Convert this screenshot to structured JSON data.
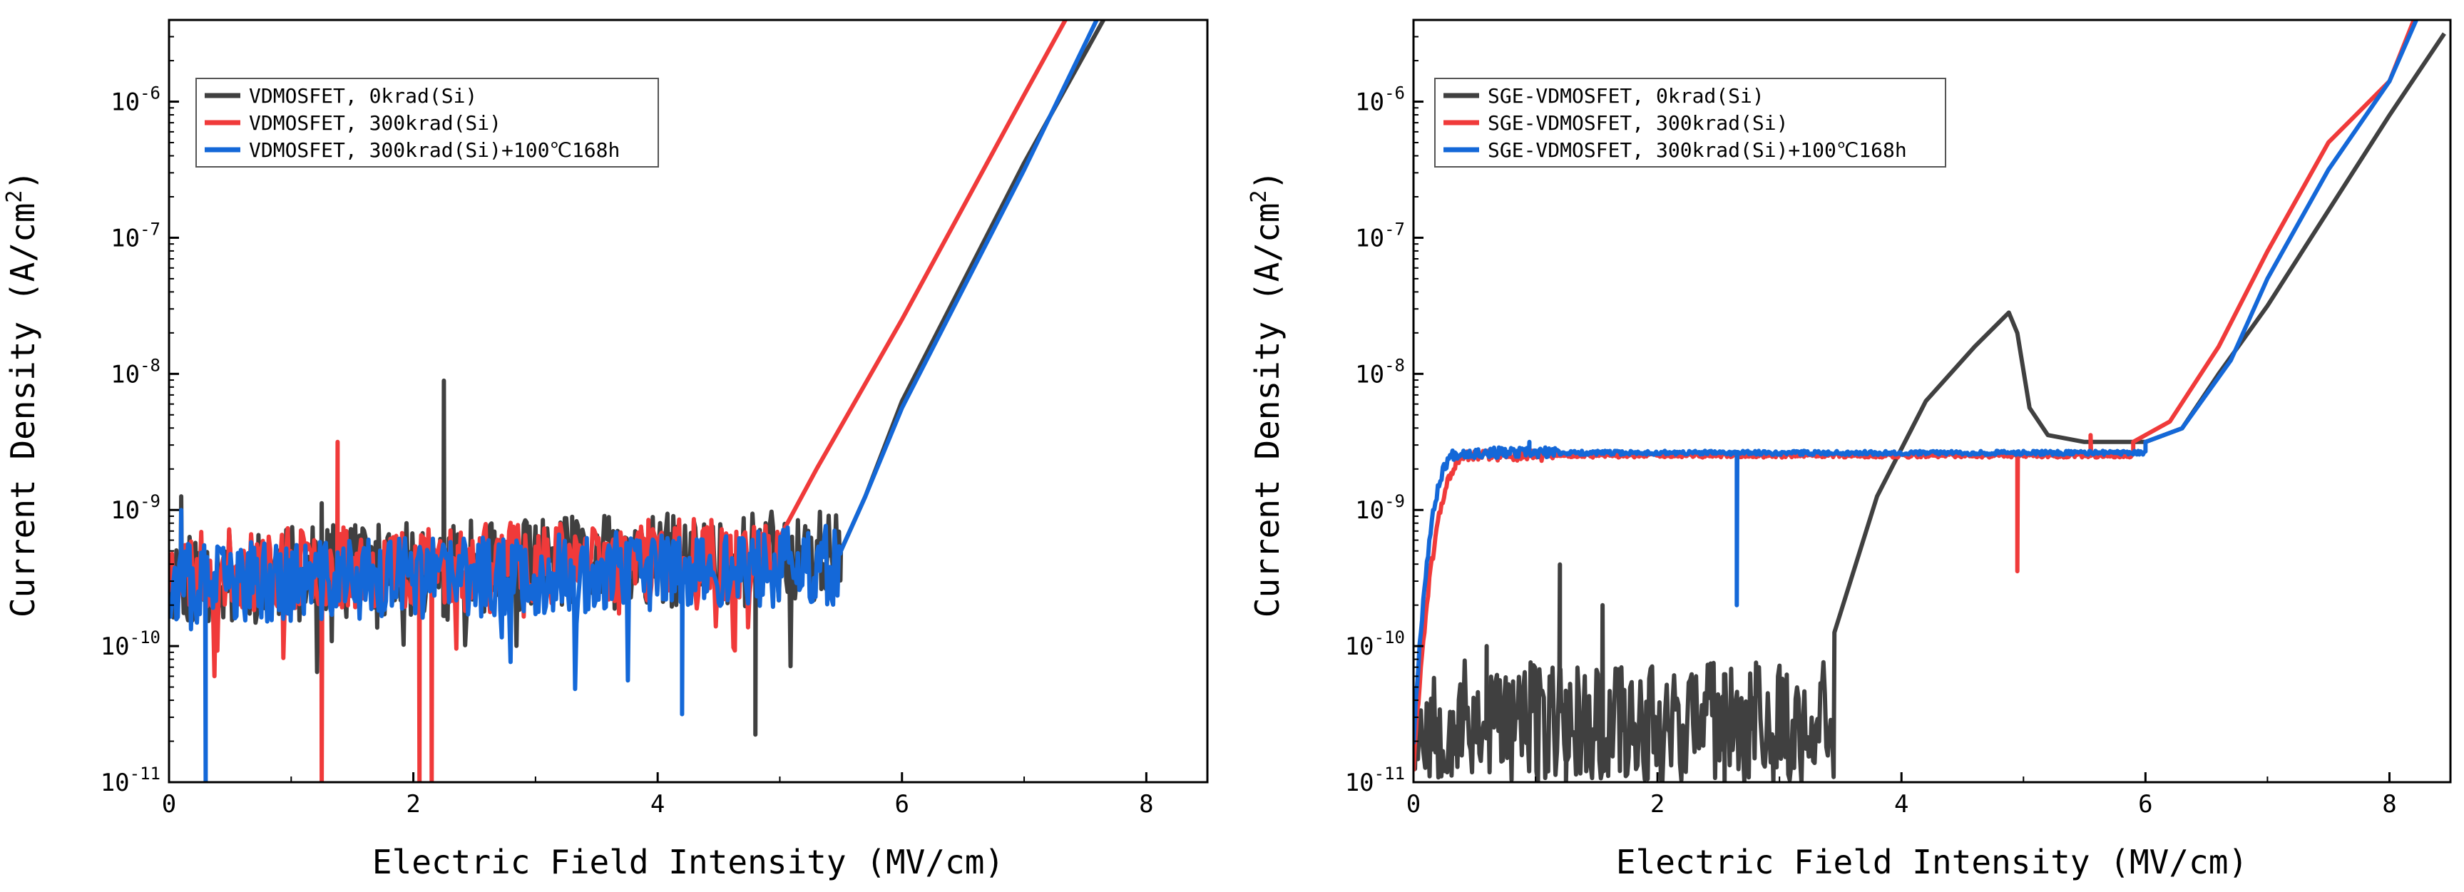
{
  "chart_data": [
    {
      "type": "line",
      "xlabel": "Electric Field Intensity (MV/cm)",
      "ylabel_main": "Current Density (A/cm",
      "ylabel_sup": "2",
      "ylabel_close": ")",
      "xlim": [
        0,
        8.5
      ],
      "ylim_log10": [
        -11,
        -5.4
      ],
      "x_ticks": [
        "0",
        "2",
        "4",
        "6",
        "8"
      ],
      "x_tick_values": [
        0,
        2,
        4,
        6,
        8
      ],
      "y_tick_base": "10",
      "y_tick_exponents": [
        "-11",
        "-10",
        "-9",
        "-8",
        "-7",
        "-6"
      ],
      "y_tick_values": [
        -11,
        -10,
        -9,
        -8,
        -7,
        -6
      ],
      "legend_position": "top-left",
      "series": [
        {
          "name": "VDMOSFET, 0krad(Si)",
          "color": "#404040",
          "noise": {
            "x_end": 5.5,
            "base_log": -9.5,
            "slope": 0.03,
            "amp": 0.35,
            "seed": 11
          },
          "spikes": [
            [
              0.1,
              -8.9
            ],
            [
              1.25,
              -8.95
            ],
            [
              2.25,
              -8.05
            ],
            [
              3.3,
              -9.05
            ],
            [
              4.8,
              -10.65
            ],
            [
              4.9,
              -9.3
            ]
          ],
          "points": [
            [
              5.5,
              -9.3
            ],
            [
              5.7,
              -8.9
            ],
            [
              6.0,
              -8.2
            ],
            [
              7.0,
              -6.45
            ],
            [
              7.68,
              -5.35
            ]
          ]
        },
        {
          "name": "VDMOSFET, 300krad(Si)",
          "color": "#f03a3a",
          "noise": {
            "x_end": 5.0,
            "base_log": -9.45,
            "slope": 0.02,
            "amp": 0.3,
            "seed": 23
          },
          "spikes": [
            [
              1.25,
              -11.0
            ],
            [
              1.38,
              -8.5
            ],
            [
              2.05,
              -11.0
            ],
            [
              2.15,
              -11.0
            ]
          ],
          "points": [
            [
              5.0,
              -9.2
            ],
            [
              5.3,
              -8.7
            ],
            [
              6.0,
              -7.6
            ],
            [
              7.0,
              -5.95
            ],
            [
              7.35,
              -5.38
            ]
          ]
        },
        {
          "name": "VDMOSFET, 300krad(Si)+100℃168h",
          "color": "#1468d8",
          "noise": {
            "x_end": 5.5,
            "base_log": -9.55,
            "slope": 0.025,
            "amp": 0.3,
            "seed": 37
          },
          "spikes": [
            [
              0.1,
              -9.0
            ],
            [
              0.3,
              -11.0
            ],
            [
              4.2,
              -10.5
            ]
          ],
          "points": [
            [
              5.5,
              -9.3
            ],
            [
              5.7,
              -8.9
            ],
            [
              6.0,
              -8.25
            ],
            [
              7.0,
              -6.5
            ],
            [
              7.62,
              -5.35
            ]
          ]
        }
      ]
    },
    {
      "type": "line",
      "xlabel": "Electric Field Intensity (MV/cm)",
      "ylabel_main": "Current Density (A/cm",
      "ylabel_sup": "2",
      "ylabel_close": ")",
      "xlim": [
        0,
        8.5
      ],
      "ylim_log10": [
        -11,
        -5.4
      ],
      "x_ticks": [
        "0",
        "2",
        "4",
        "6",
        "8"
      ],
      "x_tick_values": [
        0,
        2,
        4,
        6,
        8
      ],
      "y_tick_base": "10",
      "y_tick_exponents": [
        "-11",
        "-10",
        "-9",
        "-8",
        "-7",
        "-6"
      ],
      "y_tick_values": [
        -11,
        -10,
        -9,
        -8,
        -7,
        -6
      ],
      "legend_position": "top-left",
      "series": [
        {
          "name": "SGE-VDMOSFET, 0krad(Si)",
          "color": "#404040",
          "noise": {
            "x_start": 0.0,
            "x_end": 3.45,
            "base_log": -10.55,
            "slope": 0.0,
            "amp": 0.45,
            "seed": 53
          },
          "spikes": [
            [
              0.6,
              -10.0
            ],
            [
              1.2,
              -9.4
            ],
            [
              1.25,
              -11.0
            ],
            [
              1.55,
              -9.7
            ],
            [
              2.55,
              -11.0
            ],
            [
              2.95,
              -11.0
            ]
          ],
          "points": [
            [
              3.45,
              -9.9
            ],
            [
              3.8,
              -8.9
            ],
            [
              4.2,
              -8.2
            ],
            [
              4.6,
              -7.8
            ],
            [
              4.88,
              -7.55
            ],
            [
              4.95,
              -7.7
            ],
            [
              5.05,
              -8.25
            ],
            [
              5.2,
              -8.45
            ],
            [
              5.5,
              -8.5
            ],
            [
              6.0,
              -8.5
            ],
            [
              6.3,
              -8.4
            ],
            [
              6.6,
              -8.0
            ],
            [
              7.0,
              -7.5
            ],
            [
              7.5,
              -6.8
            ],
            [
              8.0,
              -6.1
            ],
            [
              8.45,
              -5.5
            ]
          ]
        },
        {
          "name": "SGE-VDMOSFET, 300krad(Si)",
          "color": "#f03a3a",
          "flat": {
            "x_start": 0.0,
            "y_start": -10.9,
            "knee_x": 0.5,
            "level": -8.6,
            "x_end": 5.9,
            "seed": 61
          },
          "spikes": [
            [
              4.95,
              -9.45
            ],
            [
              5.55,
              -8.45
            ]
          ],
          "points": [
            [
              5.9,
              -8.5
            ],
            [
              6.2,
              -8.35
            ],
            [
              6.6,
              -7.8
            ],
            [
              7.0,
              -7.1
            ],
            [
              7.5,
              -6.3
            ],
            [
              8.0,
              -5.85
            ],
            [
              8.2,
              -5.4
            ]
          ]
        },
        {
          "name": "SGE-VDMOSFET, 300krad(Si)+100℃168h",
          "color": "#1468d8",
          "flat": {
            "x_start": 0.0,
            "y_start": -10.7,
            "knee_x": 0.4,
            "level": -8.58,
            "x_end": 6.0,
            "seed": 67
          },
          "spikes": [
            [
              0.95,
              -8.5
            ],
            [
              2.65,
              -9.7
            ]
          ],
          "points": [
            [
              6.0,
              -8.5
            ],
            [
              6.3,
              -8.4
            ],
            [
              6.7,
              -7.9
            ],
            [
              7.0,
              -7.3
            ],
            [
              7.5,
              -6.5
            ],
            [
              8.0,
              -5.85
            ],
            [
              8.22,
              -5.4
            ]
          ]
        }
      ]
    }
  ]
}
